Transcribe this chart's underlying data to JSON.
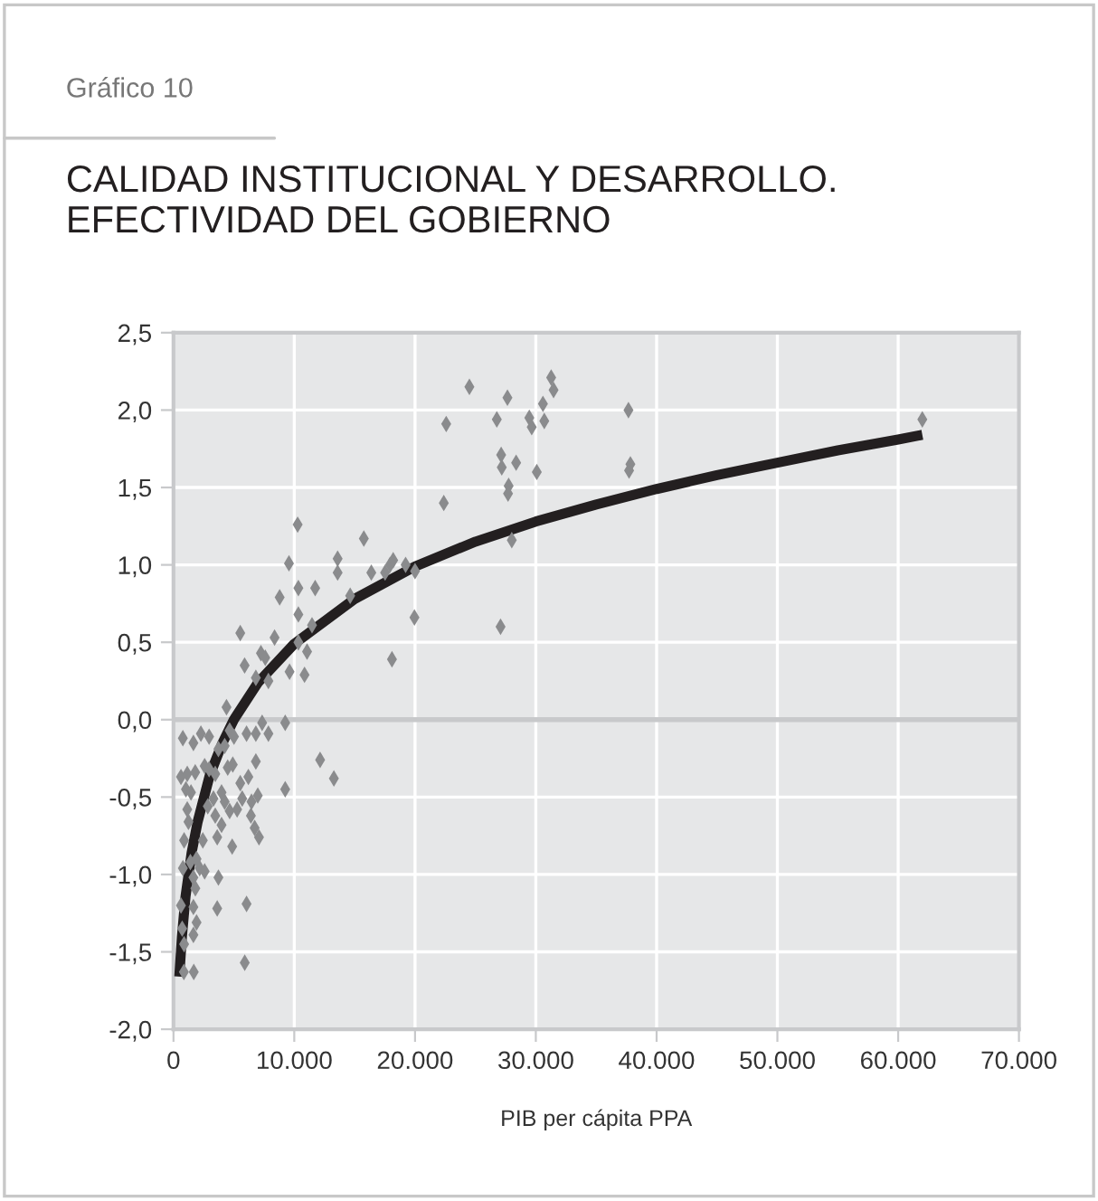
{
  "chart_data": {
    "type": "scatter",
    "title": "CALIDAD INSTITUCIONAL Y DESARROLLO.\nEFECTIVIDAD DEL GOBIERNO",
    "xlabel": "PIB per cápita PPA",
    "annotations": [
      "Gráfico 10"
    ],
    "grid": true,
    "xlim": [
      0,
      70000
    ],
    "ylim": [
      -2.0,
      2.5
    ],
    "xticks": [
      0,
      {
        "value": 10000,
        "label": "10.000"
      },
      {
        "value": 20000,
        "label": "20.000"
      },
      {
        "value": 30000,
        "label": "30.000"
      },
      {
        "value": 40000,
        "label": "40.000"
      },
      {
        "value": 50000,
        "label": "50.000"
      },
      {
        "value": 60000,
        "label": "60.000"
      },
      {
        "value": 70000,
        "label": "70.000"
      }
    ],
    "yticks": [
      {
        "value": -2.0,
        "label": "-2,0"
      },
      {
        "value": -1.5,
        "label": "-1,5"
      },
      {
        "value": -1.0,
        "label": "-1,0"
      },
      {
        "value": -0.5,
        "label": "-0,5"
      },
      {
        "value": 0.0,
        "label": "0,0"
      },
      {
        "value": 0.5,
        "label": "0,5"
      },
      {
        "value": 1.0,
        "label": "1,0"
      },
      {
        "value": 1.5,
        "label": "1,5"
      },
      {
        "value": 2.0,
        "label": "2,0"
      },
      {
        "value": 2.5,
        "label": "2,5"
      }
    ],
    "ref_lines": [
      {
        "axis": "y",
        "value": 0.0,
        "color": "#c8c9cb"
      }
    ],
    "series": [
      {
        "marker": "diamond",
        "color": "#8a8b8d",
        "x": [
          775,
          2270,
          1650,
          2950,
          620,
          1140,
          1800,
          1030,
          1450,
          2580,
          2950,
          3460,
          3720,
          4240,
          4390,
          4650,
          5010,
          5530,
          5890,
          6050,
          6820,
          6820,
          7240,
          7600,
          7860,
          7340,
          7860,
          8370,
          8790,
          9250,
          9250,
          9560,
          9610,
          10280,
          10340,
          10340,
          10340,
          10850,
          11060,
          11470,
          11730,
          12140,
          13280,
          13590,
          13590,
          14630,
          15760,
          16380,
          17520,
          17930,
          18190,
          18090,
          19220,
          20000,
          19950,
          22380,
          22580,
          24500,
          26770,
          27130,
          27180,
          27080,
          27650,
          27750,
          27700,
          28010,
          28370,
          29460,
          29660,
          30080,
          30590,
          30700,
          31270,
          31470,
          37670,
          37720,
          37830,
          62000,
          880,
          1240,
          1140,
          780,
          1400,
          1650,
          1910,
          2170,
          2580,
          1810,
          1650,
          620,
          1910,
          1650,
          720,
          880,
          3720,
          3620,
          6050,
          2430,
          2840,
          3310,
          3620,
          3980,
          4240,
          4650,
          4860,
          5270,
          5530,
          5690,
          6200,
          6460,
          6410,
          6820,
          6980,
          7080,
          6720,
          4490,
          4910,
          3980,
          3460,
          5900,
          1680,
          860
        ],
        "values": [
          -0.12,
          -0.09,
          -0.15,
          -0.11,
          -0.37,
          -0.35,
          -0.34,
          -0.45,
          -0.47,
          -0.3,
          -0.32,
          -0.35,
          -0.19,
          -0.17,
          0.08,
          -0.07,
          -0.11,
          0.56,
          0.35,
          -0.09,
          -0.09,
          0.27,
          0.43,
          0.4,
          0.25,
          -0.02,
          -0.09,
          0.53,
          0.79,
          -0.02,
          -0.45,
          1.01,
          0.31,
          1.26,
          0.85,
          0.68,
          0.5,
          0.29,
          0.44,
          0.61,
          0.85,
          -0.26,
          -0.38,
          1.04,
          0.95,
          0.8,
          1.17,
          0.95,
          0.95,
          1.0,
          1.03,
          0.39,
          1.0,
          0.96,
          0.66,
          1.4,
          1.91,
          2.15,
          1.94,
          1.71,
          1.63,
          0.6,
          2.08,
          1.51,
          1.46,
          1.16,
          1.66,
          1.95,
          1.89,
          1.6,
          2.04,
          1.93,
          2.21,
          2.13,
          2.0,
          1.61,
          1.65,
          1.94,
          -0.78,
          -0.66,
          -0.58,
          -0.96,
          -0.92,
          -1.02,
          -0.9,
          -0.96,
          -0.98,
          -1.09,
          -1.21,
          -1.2,
          -1.31,
          -1.39,
          -1.35,
          -1.45,
          -1.02,
          -1.22,
          -1.19,
          -0.78,
          -0.56,
          -0.51,
          -0.76,
          -0.68,
          -0.53,
          -0.59,
          -0.82,
          -0.58,
          -0.41,
          -0.51,
          -0.37,
          -0.53,
          -0.62,
          -0.27,
          -0.49,
          -0.76,
          -0.7,
          -0.31,
          -0.29,
          -0.47,
          -0.62,
          -1.57,
          -1.63,
          -1.63
        ]
      },
      {
        "type": "line",
        "marker": "none",
        "color": "#231f20",
        "x": [
          480,
          700,
          1000,
          1500,
          2000,
          3000,
          4000,
          5000,
          7000,
          10000,
          15000,
          20000,
          25000,
          30000,
          35000,
          40000,
          45000,
          50000,
          55000,
          60000,
          62000
        ],
        "values": [
          -1.66,
          -1.4,
          -1.14,
          -0.86,
          -0.66,
          -0.36,
          -0.16,
          0.0,
          0.24,
          0.49,
          0.78,
          0.99,
          1.15,
          1.28,
          1.39,
          1.49,
          1.58,
          1.66,
          1.74,
          1.81,
          1.84
        ]
      }
    ]
  }
}
